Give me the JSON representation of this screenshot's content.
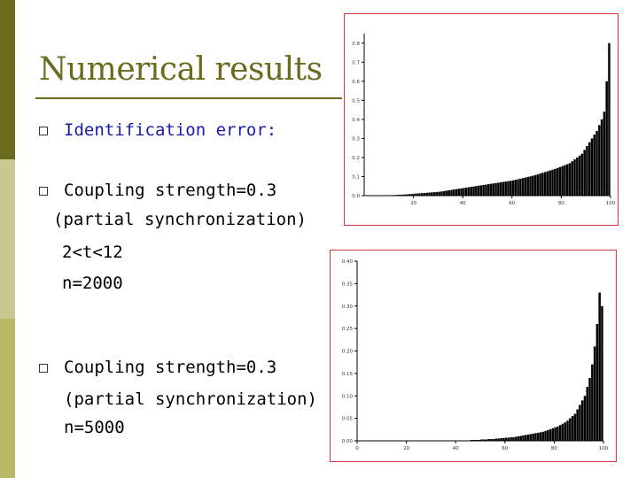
{
  "slide": {
    "title": "Numerical results",
    "bullets": [
      {
        "lines": [
          "Identification error:"
        ]
      },
      {
        "lines": [
          "Coupling strength=0.3",
          "(partial synchronization)",
          "2<t<12",
          "n=2000"
        ]
      },
      {
        "lines": [
          "Coupling strength=0.3",
          "(partial synchronization)",
          "n=5000"
        ]
      }
    ]
  },
  "colors": {
    "sidebar_top": "#6b6b1e",
    "sidebar_mid": "#c8c890",
    "sidebar_bottom": "#b9b96a",
    "title": "#6b6b1e",
    "bullet_blue": "#1a1aa8",
    "frame": "#d23a3a"
  },
  "chart_data": [
    {
      "type": "bar",
      "title": "",
      "xlabel": "",
      "ylabel": "",
      "xlim": [
        0,
        100
      ],
      "ylim": [
        0,
        0.85
      ],
      "xticks": [
        20,
        40,
        60,
        80,
        100
      ],
      "yticks": [
        0.0,
        0.1,
        0.2,
        0.3,
        0.4,
        0.5,
        0.6,
        0.7,
        0.8
      ],
      "ytick_labels": [
        "0.0",
        "0.1",
        "0.2",
        "0.3",
        "0.4",
        "0.5",
        "0.6",
        "0.7",
        "0.8"
      ],
      "x": [
        1,
        2,
        3,
        4,
        5,
        6,
        7,
        8,
        9,
        10,
        11,
        12,
        13,
        14,
        15,
        16,
        17,
        18,
        19,
        20,
        21,
        22,
        23,
        24,
        25,
        26,
        27,
        28,
        29,
        30,
        31,
        32,
        33,
        34,
        35,
        36,
        37,
        38,
        39,
        40,
        41,
        42,
        43,
        44,
        45,
        46,
        47,
        48,
        49,
        50,
        51,
        52,
        53,
        54,
        55,
        56,
        57,
        58,
        59,
        60,
        61,
        62,
        63,
        64,
        65,
        66,
        67,
        68,
        69,
        70,
        71,
        72,
        73,
        74,
        75,
        76,
        77,
        78,
        79,
        80,
        81,
        82,
        83,
        84,
        85,
        86,
        87,
        88,
        89,
        90,
        91,
        92,
        93,
        94,
        95,
        96,
        97,
        98,
        99,
        100
      ],
      "values": [
        0.0,
        0.0,
        0.0,
        0.0,
        0.0,
        0.0,
        0.001,
        0.001,
        0.001,
        0.002,
        0.002,
        0.003,
        0.003,
        0.004,
        0.005,
        0.005,
        0.006,
        0.007,
        0.008,
        0.009,
        0.01,
        0.011,
        0.012,
        0.013,
        0.014,
        0.015,
        0.016,
        0.017,
        0.018,
        0.019,
        0.02,
        0.022,
        0.024,
        0.026,
        0.028,
        0.03,
        0.032,
        0.034,
        0.036,
        0.038,
        0.04,
        0.042,
        0.044,
        0.046,
        0.048,
        0.05,
        0.052,
        0.054,
        0.056,
        0.058,
        0.06,
        0.062,
        0.064,
        0.066,
        0.068,
        0.07,
        0.072,
        0.074,
        0.076,
        0.078,
        0.08,
        0.083,
        0.086,
        0.089,
        0.092,
        0.095,
        0.098,
        0.101,
        0.104,
        0.108,
        0.112,
        0.116,
        0.12,
        0.124,
        0.128,
        0.132,
        0.136,
        0.14,
        0.145,
        0.15,
        0.155,
        0.16,
        0.165,
        0.17,
        0.18,
        0.19,
        0.2,
        0.21,
        0.22,
        0.24,
        0.26,
        0.28,
        0.3,
        0.32,
        0.34,
        0.37,
        0.4,
        0.44,
        0.6,
        0.8
      ]
    },
    {
      "type": "bar",
      "title": "",
      "xlabel": "",
      "ylabel": "",
      "xlim": [
        0,
        100
      ],
      "ylim": [
        0,
        0.4
      ],
      "xticks": [
        0,
        20,
        40,
        60,
        80,
        100
      ],
      "yticks": [
        0.0,
        0.05,
        0.1,
        0.15,
        0.2,
        0.25,
        0.3,
        0.35,
        0.4
      ],
      "ytick_labels": [
        "0.00",
        "0.05",
        "0.10",
        "0.15",
        "0.20",
        "0.25",
        "0.30",
        "0.35",
        "0.40"
      ],
      "x": [
        1,
        2,
        3,
        4,
        5,
        6,
        7,
        8,
        9,
        10,
        11,
        12,
        13,
        14,
        15,
        16,
        17,
        18,
        19,
        20,
        21,
        22,
        23,
        24,
        25,
        26,
        27,
        28,
        29,
        30,
        31,
        32,
        33,
        34,
        35,
        36,
        37,
        38,
        39,
        40,
        41,
        42,
        43,
        44,
        45,
        46,
        47,
        48,
        49,
        50,
        51,
        52,
        53,
        54,
        55,
        56,
        57,
        58,
        59,
        60,
        61,
        62,
        63,
        64,
        65,
        66,
        67,
        68,
        69,
        70,
        71,
        72,
        73,
        74,
        75,
        76,
        77,
        78,
        79,
        80,
        81,
        82,
        83,
        84,
        85,
        86,
        87,
        88,
        89,
        90,
        91,
        92,
        93,
        94,
        95,
        96,
        97,
        98,
        99,
        100
      ],
      "values": [
        0.0,
        0.0,
        0.0,
        0.0,
        0.0,
        0.0,
        0.0,
        0.0,
        0.0,
        0.0,
        0.0,
        0.0,
        0.0,
        0.0,
        0.0,
        0.0,
        0.0,
        0.0,
        0.0,
        0.0,
        0.0,
        0.0,
        0.0,
        0.0,
        0.0,
        0.0,
        0.0,
        0.0,
        0.0,
        0.0,
        0.0,
        0.0,
        0.0,
        0.0,
        0.0,
        0.0,
        0.0,
        0.0,
        0.0,
        0.0,
        0.0,
        0.0,
        0.001,
        0.001,
        0.001,
        0.001,
        0.002,
        0.002,
        0.002,
        0.002,
        0.003,
        0.003,
        0.003,
        0.004,
        0.004,
        0.004,
        0.005,
        0.005,
        0.006,
        0.006,
        0.007,
        0.007,
        0.008,
        0.008,
        0.009,
        0.01,
        0.011,
        0.012,
        0.013,
        0.014,
        0.015,
        0.016,
        0.017,
        0.018,
        0.019,
        0.02,
        0.022,
        0.024,
        0.026,
        0.028,
        0.03,
        0.032,
        0.035,
        0.038,
        0.041,
        0.045,
        0.05,
        0.055,
        0.06,
        0.07,
        0.08,
        0.09,
        0.1,
        0.12,
        0.14,
        0.17,
        0.21,
        0.26,
        0.33,
        0.3
      ]
    }
  ]
}
